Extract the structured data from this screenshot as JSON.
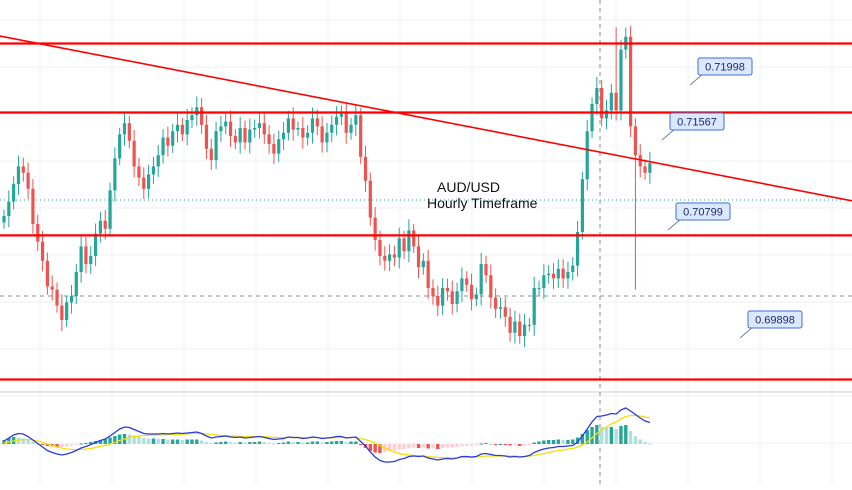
{
  "chart_data": {
    "type": "candlestick",
    "title": "AUD/USD",
    "subtitle": "Hourly Timeframe",
    "colors": {
      "up": "#26a69a",
      "down": "#ef5350",
      "level_line": "#ff0000",
      "trendline": "#ff0000",
      "label_bg": "#dbe8ff",
      "label_border": "#3d6fd6",
      "macd_line": "#2b3be0",
      "signal_line": "#f3e000",
      "grid": "#eef0f3"
    },
    "price_scale": {
      "top_price": 0.7227,
      "bottom_price": 0.6982
    },
    "levels": [
      {
        "label": "0.71998",
        "price": 0.71998
      },
      {
        "label": "0.71567",
        "price": 0.71567
      },
      {
        "label": "0.70799",
        "price": 0.70799
      },
      {
        "label": "0.69898",
        "price": 0.69898
      }
    ],
    "trendline": {
      "start_price": 0.72045,
      "end_price": 0.71015
    },
    "closes": [
      0.7092,
      0.7101,
      0.7112,
      0.7123,
      0.7119,
      0.7109,
      0.7087,
      0.7076,
      0.7064,
      0.7048,
      0.7046,
      0.7036,
      0.7027,
      0.7038,
      0.7042,
      0.7057,
      0.7073,
      0.7062,
      0.7067,
      0.7081,
      0.7089,
      0.7084,
      0.7108,
      0.7128,
      0.7143,
      0.715,
      0.7139,
      0.7123,
      0.7116,
      0.7109,
      0.7118,
      0.7123,
      0.713,
      0.7141,
      0.7136,
      0.7145,
      0.7149,
      0.7143,
      0.7152,
      0.7155,
      0.716,
      0.7149,
      0.7134,
      0.7127,
      0.7145,
      0.7148,
      0.7151,
      0.7142,
      0.7138,
      0.7147,
      0.7138,
      0.7146,
      0.7147,
      0.715,
      0.7143,
      0.7137,
      0.7131,
      0.714,
      0.7144,
      0.7153,
      0.7146,
      0.7147,
      0.7141,
      0.7144,
      0.7153,
      0.7148,
      0.7138,
      0.7144,
      0.7149,
      0.7154,
      0.7156,
      0.7144,
      0.7149,
      0.7155,
      0.7129,
      0.7114,
      0.7091,
      0.7077,
      0.7067,
      0.7064,
      0.7068,
      0.7066,
      0.7078,
      0.707,
      0.7083,
      0.7073,
      0.706,
      0.7064,
      0.7047,
      0.7042,
      0.7036,
      0.7047,
      0.7045,
      0.7037,
      0.7045,
      0.7053,
      0.7049,
      0.704,
      0.7043,
      0.7062,
      0.7055,
      0.7041,
      0.7034,
      0.7035,
      0.7029,
      0.7019,
      0.7026,
      0.7017,
      0.7024,
      0.7024,
      0.7047,
      0.7047,
      0.7055,
      0.7056,
      0.7053,
      0.7059,
      0.7053,
      0.7057,
      0.7061,
      0.7082,
      0.7115,
      0.7145,
      0.7162,
      0.7172,
      0.7153,
      0.7158,
      0.7169,
      0.7158,
      0.7196,
      0.7204,
      0.7148,
      0.713,
      0.7123,
      0.7119,
      0.7125
    ],
    "macd_hist": [
      0.8,
      1.2,
      1.4,
      1.3,
      1.1,
      0.8,
      0.4,
      0.1,
      -0.2,
      -0.4,
      -0.5,
      -0.6,
      -0.6,
      -0.5,
      -0.3,
      -0.1,
      0.1,
      0.2,
      0.4,
      0.6,
      0.8,
      1.0,
      1.3,
      1.6,
      1.9,
      2.0,
      1.9,
      1.7,
      1.5,
      1.2,
      1.1,
      1.1,
      1.0,
      1.0,
      0.9,
      0.9,
      0.9,
      0.8,
      0.9,
      0.9,
      0.9,
      0.7,
      0.4,
      0.2,
      0.3,
      0.4,
      0.5,
      0.4,
      0.3,
      0.4,
      0.3,
      0.4,
      0.4,
      0.5,
      0.4,
      0.2,
      0.1,
      0.2,
      0.3,
      0.5,
      0.4,
      0.4,
      0.3,
      0.3,
      0.5,
      0.5,
      0.3,
      0.4,
      0.5,
      0.6,
      0.6,
      0.4,
      0.5,
      0.5,
      -0.2,
      -0.8,
      -1.4,
      -1.7,
      -1.8,
      -1.7,
      -1.5,
      -1.3,
      -1.1,
      -1.0,
      -0.8,
      -0.7,
      -0.8,
      -0.7,
      -0.9,
      -0.9,
      -1.0,
      -0.8,
      -0.7,
      -0.7,
      -0.6,
      -0.4,
      -0.4,
      -0.4,
      -0.3,
      0.1,
      0.2,
      0.0,
      -0.1,
      0.0,
      -0.1,
      -0.3,
      -0.2,
      -0.4,
      -0.3,
      -0.2,
      0.3,
      0.5,
      0.7,
      0.8,
      0.8,
      0.9,
      0.8,
      0.8,
      0.9,
      1.3,
      2.0,
      2.8,
      3.4,
      3.8,
      3.4,
      3.3,
      3.4,
      3.0,
      3.6,
      3.8,
      2.6,
      1.6,
      0.9,
      0.4,
      0.1
    ],
    "macd_line": [
      0.6,
      1.2,
      1.8,
      2.1,
      2.0,
      1.5,
      0.8,
      0.1,
      -0.6,
      -1.3,
      -1.7,
      -2.0,
      -2.2,
      -2.0,
      -1.7,
      -1.3,
      -0.8,
      -0.5,
      -0.1,
      0.3,
      0.7,
      1.0,
      1.6,
      2.3,
      3.0,
      3.4,
      3.3,
      2.9,
      2.5,
      2.1,
      2.0,
      2.0,
      2.0,
      2.1,
      2.0,
      2.1,
      2.2,
      2.1,
      2.2,
      2.3,
      2.4,
      2.1,
      1.6,
      1.2,
      1.4,
      1.5,
      1.6,
      1.4,
      1.3,
      1.4,
      1.2,
      1.3,
      1.4,
      1.5,
      1.3,
      1.1,
      0.9,
      1.0,
      1.1,
      1.4,
      1.3,
      1.3,
      1.1,
      1.2,
      1.4,
      1.3,
      1.1,
      1.2,
      1.3,
      1.5,
      1.5,
      1.2,
      1.3,
      1.4,
      0.5,
      -0.4,
      -1.6,
      -2.6,
      -3.3,
      -3.6,
      -3.6,
      -3.5,
      -3.1,
      -2.9,
      -2.5,
      -2.4,
      -2.5,
      -2.4,
      -2.8,
      -3.0,
      -3.2,
      -3.0,
      -2.9,
      -3.0,
      -2.8,
      -2.5,
      -2.5,
      -2.6,
      -2.5,
      -2.0,
      -1.9,
      -2.1,
      -2.3,
      -2.3,
      -2.4,
      -2.6,
      -2.5,
      -2.6,
      -2.5,
      -2.3,
      -1.7,
      -1.3,
      -1.0,
      -0.8,
      -0.7,
      -0.5,
      -0.5,
      -0.4,
      -0.3,
      0.4,
      1.6,
      3.0,
      4.4,
      5.5,
      5.6,
      5.8,
      6.1,
      6.0,
      6.8,
      7.2,
      6.6,
      5.9,
      5.2,
      4.6,
      4.3
    ],
    "signal_line": [
      0.2,
      0.4,
      0.6,
      0.8,
      0.9,
      0.9,
      0.8,
      0.6,
      0.3,
      0.0,
      -0.3,
      -0.6,
      -0.8,
      -1.0,
      -1.1,
      -1.1,
      -1.1,
      -1.0,
      -0.9,
      -0.7,
      -0.5,
      -0.3,
      0.0,
      0.3,
      0.7,
      1.0,
      1.3,
      1.5,
      1.6,
      1.7,
      1.7,
      1.8,
      1.8,
      1.8,
      1.9,
      1.9,
      1.9,
      2.0,
      2.0,
      2.1,
      2.1,
      2.1,
      2.0,
      1.9,
      1.8,
      1.7,
      1.7,
      1.6,
      1.6,
      1.5,
      1.5,
      1.5,
      1.5,
      1.5,
      1.5,
      1.4,
      1.3,
      1.3,
      1.3,
      1.3,
      1.3,
      1.3,
      1.3,
      1.2,
      1.3,
      1.3,
      1.2,
      1.2,
      1.2,
      1.3,
      1.3,
      1.3,
      1.3,
      1.3,
      1.1,
      0.9,
      0.6,
      0.2,
      -0.3,
      -0.8,
      -1.2,
      -1.6,
      -1.9,
      -2.1,
      -2.2,
      -2.3,
      -2.4,
      -2.4,
      -2.5,
      -2.6,
      -2.7,
      -2.7,
      -2.7,
      -2.8,
      -2.8,
      -2.7,
      -2.7,
      -2.7,
      -2.6,
      -2.5,
      -2.4,
      -2.4,
      -2.4,
      -2.4,
      -2.4,
      -2.4,
      -2.4,
      -2.5,
      -2.5,
      -2.4,
      -2.3,
      -2.1,
      -1.9,
      -1.7,
      -1.5,
      -1.3,
      -1.2,
      -1.0,
      -0.9,
      -0.6,
      -0.2,
      0.4,
      1.2,
      2.1,
      2.8,
      3.4,
      4.0,
      4.4,
      5.0,
      5.5,
      5.7,
      5.7,
      5.6,
      5.4,
      5.2
    ]
  }
}
